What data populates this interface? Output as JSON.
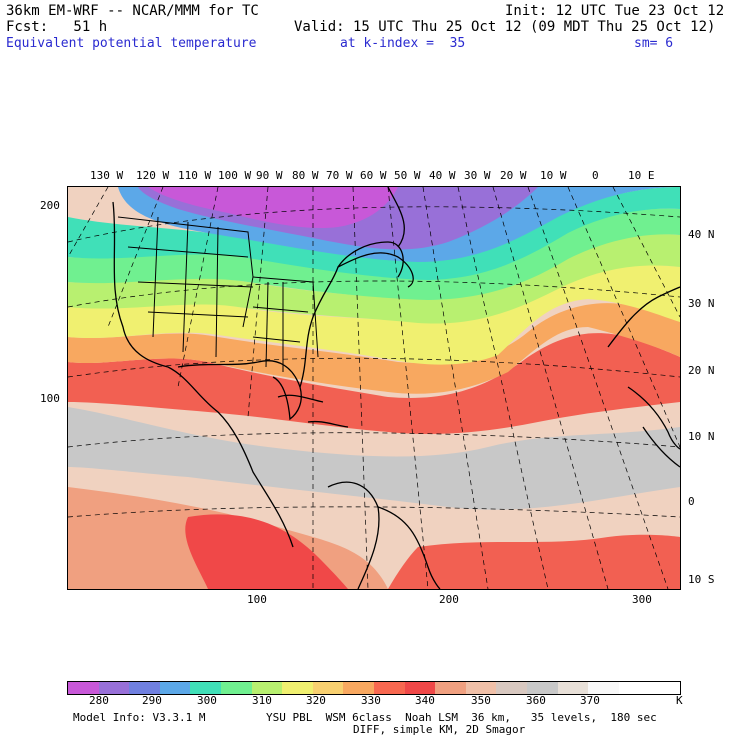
{
  "header": {
    "model_line": "36km EM-WRF -- NCAR/MMM for TC",
    "init_line": "Init: 12 UTC Tue 23 Oct 12",
    "fcst_line": "Fcst:   51 h",
    "valid_line": "Valid: 15 UTC Thu 25 Oct 12 (09 MDT Thu 25 Oct 12)",
    "field_line": "Equivalent potential temperature",
    "kindex_line": "at k-index =  35",
    "sm_line": "sm= 6"
  },
  "top_axis_labels": [
    "130 W",
    "120 W",
    "110 W",
    "100 W",
    "90 W",
    "80 W",
    "70 W",
    "60 W",
    "50 W",
    "40 W",
    "30 W",
    "20 W",
    "10 W",
    "0",
    "10 E"
  ],
  "right_axis_labels": [
    "40 N",
    "30 N",
    "20 N",
    "10 N",
    "0",
    "10 S"
  ],
  "left_axis_labels": [
    "200",
    "100"
  ],
  "bottom_axis_labels": [
    "100",
    "200",
    "300"
  ],
  "colorbar": {
    "levels": [
      "280",
      "290",
      "300",
      "310",
      "320",
      "330",
      "340",
      "350",
      "360",
      "370",
      "K"
    ],
    "colors": [
      "#c858d8",
      "#9870d8",
      "#7080e0",
      "#5ca8e8",
      "#40e0b8",
      "#70f090",
      "#b8f070",
      "#f0f070",
      "#f8d070",
      "#f8a860",
      "#f86850",
      "#f04848",
      "#f0a080",
      "#f0c0a8",
      "#d8c8c0",
      "#c8c8c8",
      "#e8e0d8",
      "#f8f8f8",
      "#ffffff",
      "#ffffff"
    ]
  },
  "footer": {
    "model_info": "Model Info: V3.3.1 M",
    "physics_line": "YSU PBL  WSM 6class  Noah LSM  36 km,   35 levels,  180 sec",
    "diff_line": "DIFF, simple KM, 2D Smagor"
  },
  "map_colors": {
    "deep_purple": "#c858d8",
    "purple": "#9870d8",
    "blue": "#5ca8e8",
    "cyan": "#40e0b8",
    "green": "#70f090",
    "lime": "#b8f070",
    "yellow": "#f0f070",
    "orange": "#f8a860",
    "red": "#f04848",
    "salmon": "#f0a080",
    "tan": "#f0d2c0",
    "gray": "#c8c8c8"
  }
}
